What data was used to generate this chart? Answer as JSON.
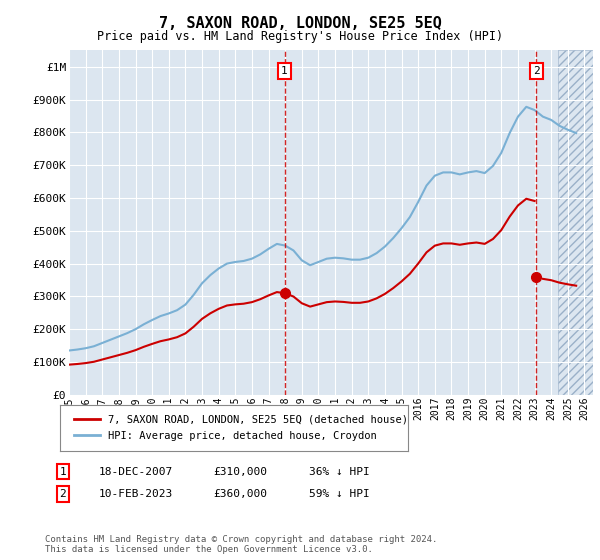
{
  "title": "7, SAXON ROAD, LONDON, SE25 5EQ",
  "subtitle": "Price paid vs. HM Land Registry's House Price Index (HPI)",
  "ylim": [
    0,
    1050000
  ],
  "yticks": [
    0,
    100000,
    200000,
    300000,
    400000,
    500000,
    600000,
    700000,
    800000,
    900000,
    1000000
  ],
  "ytick_labels": [
    "£0",
    "£100K",
    "£200K",
    "£300K",
    "£400K",
    "£500K",
    "£600K",
    "£700K",
    "£800K",
    "£900K",
    "£1M"
  ],
  "xlim_start": 1995.0,
  "xlim_end": 2026.5,
  "background_color": "#dce6f0",
  "grid_color": "#ffffff",
  "hpi_color": "#7ab0d4",
  "price_color": "#cc0000",
  "marker1_x": 2007.96,
  "marker1_y": 310000,
  "marker2_x": 2023.11,
  "marker2_y": 360000,
  "annotation1": [
    "1",
    "18-DEC-2007",
    "£310,000",
    "36% ↓ HPI"
  ],
  "annotation2": [
    "2",
    "10-FEB-2023",
    "£360,000",
    "59% ↓ HPI"
  ],
  "legend_line1": "7, SAXON ROAD, LONDON, SE25 5EQ (detached house)",
  "legend_line2": "HPI: Average price, detached house, Croydon",
  "footer": "Contains HM Land Registry data © Crown copyright and database right 2024.\nThis data is licensed under the Open Government Licence v3.0.",
  "xticks": [
    1995,
    1996,
    1997,
    1998,
    1999,
    2000,
    2001,
    2002,
    2003,
    2004,
    2005,
    2006,
    2007,
    2008,
    2009,
    2010,
    2011,
    2012,
    2013,
    2014,
    2015,
    2016,
    2017,
    2018,
    2019,
    2020,
    2021,
    2022,
    2023,
    2024,
    2025,
    2026
  ],
  "hpi_years": [
    1995.0,
    1995.5,
    1996.0,
    1996.5,
    1997.0,
    1997.5,
    1998.0,
    1998.5,
    1999.0,
    1999.5,
    2000.0,
    2000.5,
    2001.0,
    2001.5,
    2002.0,
    2002.5,
    2003.0,
    2003.5,
    2004.0,
    2004.5,
    2005.0,
    2005.5,
    2006.0,
    2006.5,
    2007.0,
    2007.5,
    2008.0,
    2008.5,
    2009.0,
    2009.5,
    2010.0,
    2010.5,
    2011.0,
    2011.5,
    2012.0,
    2012.5,
    2013.0,
    2013.5,
    2014.0,
    2014.5,
    2015.0,
    2015.5,
    2016.0,
    2016.5,
    2017.0,
    2017.5,
    2018.0,
    2018.5,
    2019.0,
    2019.5,
    2020.0,
    2020.5,
    2021.0,
    2021.5,
    2022.0,
    2022.5,
    2023.0,
    2023.5,
    2024.0,
    2024.5,
    2025.0,
    2025.5
  ],
  "hpi_values": [
    135000,
    138000,
    142000,
    148000,
    158000,
    168000,
    178000,
    188000,
    200000,
    215000,
    228000,
    240000,
    248000,
    258000,
    275000,
    305000,
    340000,
    365000,
    385000,
    400000,
    405000,
    408000,
    415000,
    428000,
    445000,
    460000,
    455000,
    440000,
    410000,
    395000,
    405000,
    415000,
    418000,
    416000,
    412000,
    412000,
    418000,
    432000,
    452000,
    478000,
    508000,
    542000,
    588000,
    638000,
    668000,
    678000,
    678000,
    672000,
    678000,
    682000,
    676000,
    698000,
    738000,
    798000,
    848000,
    878000,
    868000,
    848000,
    838000,
    820000,
    808000,
    798000
  ]
}
